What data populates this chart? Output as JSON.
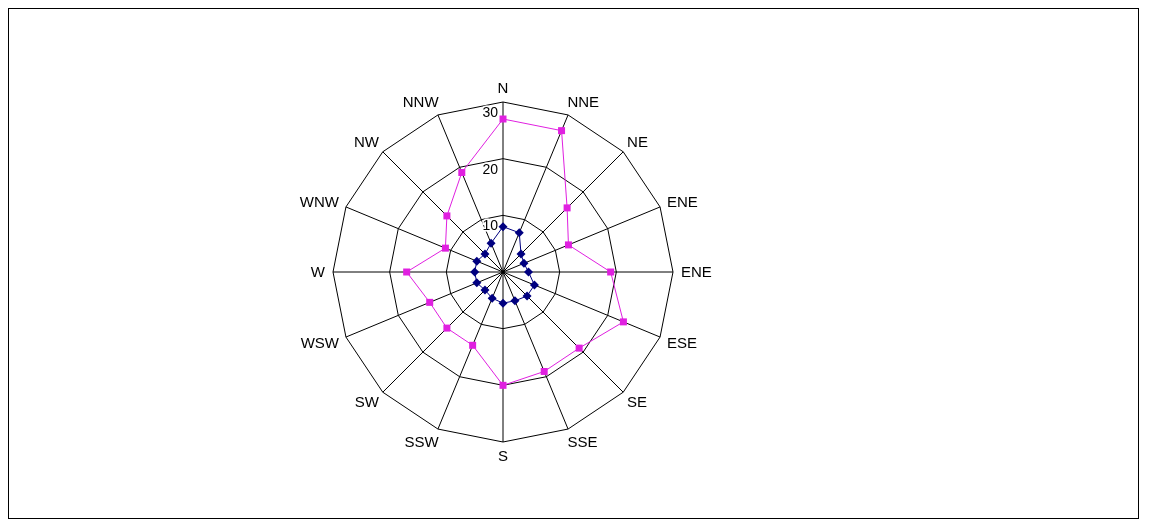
{
  "chart_data": {
    "type": "radar",
    "categories": [
      "N",
      "NNE",
      "NE",
      "ENE",
      "ENE",
      "ESE",
      "SE",
      "SSE",
      "S",
      "SSW",
      "SW",
      "WSW",
      "W",
      "WNW",
      "NW",
      "NNW"
    ],
    "ylim": [
      0,
      30
    ],
    "yticks": [
      10,
      20,
      30
    ],
    "series": [
      {
        "color": "#e020e0",
        "marker": "square",
        "values": [
          27,
          27,
          16,
          12.5,
          19,
          23,
          19,
          19,
          20,
          14,
          14,
          14,
          17,
          11,
          14,
          19
        ]
      },
      {
        "color": "#000080",
        "marker": "diamond",
        "values": [
          8,
          7.5,
          4.5,
          4,
          4.5,
          6,
          6,
          5.5,
          5.5,
          5,
          4.5,
          5,
          5,
          5,
          4.5,
          5.5
        ]
      }
    ]
  }
}
